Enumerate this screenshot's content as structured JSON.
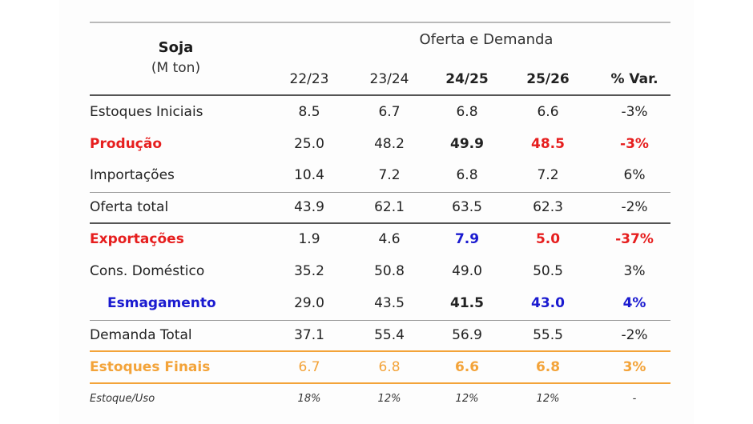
{
  "table": {
    "title": "Soja",
    "unit": "(M ton)",
    "group_header": "Oferta e Demanda",
    "columns": [
      "22/23",
      "23/24",
      "24/25",
      "25/26",
      "% Var."
    ],
    "rows": [
      {
        "label": "Estoques Iniciais",
        "values": [
          "8.5",
          "6.7",
          "6.8",
          "6.6",
          "-3%"
        ]
      },
      {
        "label": "Produção",
        "values": [
          "25.0",
          "48.2",
          "49.9",
          "48.5",
          "-3%"
        ]
      },
      {
        "label": "Importações",
        "values": [
          "10.4",
          "7.2",
          "6.8",
          "7.2",
          "6%"
        ]
      },
      {
        "label": "Oferta total",
        "values": [
          "43.9",
          "62.1",
          "63.5",
          "62.3",
          "-2%"
        ]
      },
      {
        "label": "Exportações",
        "values": [
          "1.9",
          "4.6",
          "7.9",
          "5.0",
          "-37%"
        ]
      },
      {
        "label": "Cons. Doméstico",
        "values": [
          "35.2",
          "50.8",
          "49.0",
          "50.5",
          "3%"
        ]
      },
      {
        "label": "Esmagamento",
        "values": [
          "29.0",
          "43.5",
          "41.5",
          "43.0",
          "4%"
        ]
      },
      {
        "label": "Demanda Total",
        "values": [
          "37.1",
          "55.4",
          "56.9",
          "55.5",
          "-2%"
        ]
      },
      {
        "label": "Estoques Finais",
        "values": [
          "6.7",
          "6.8",
          "6.6",
          "6.8",
          "3%"
        ]
      },
      {
        "label": "Estoque/Uso",
        "values": [
          "18%",
          "12%",
          "12%",
          "12%",
          "-"
        ]
      }
    ],
    "colors": {
      "red": "#e61e1e",
      "blue": "#1a1ad0",
      "orange": "#f3a339",
      "rule": "#b9b9b9"
    }
  }
}
